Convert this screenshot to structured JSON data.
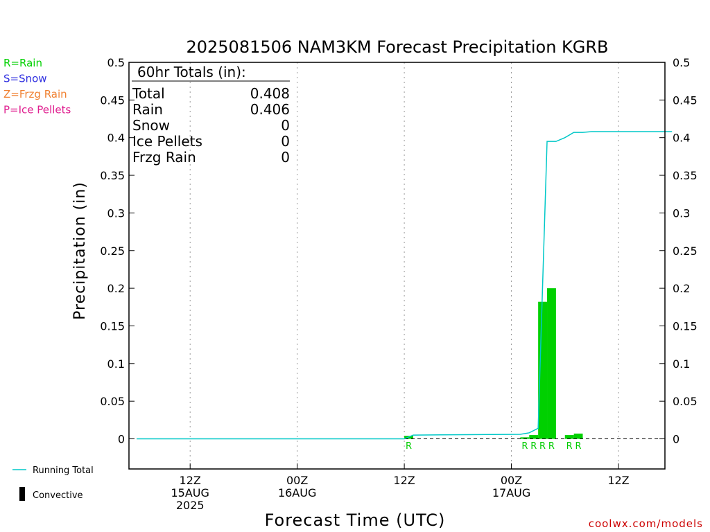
{
  "chart_data": {
    "type": "bar",
    "title": "2025081506 NAM3KM Forecast Precipitation KGRB",
    "xlabel": "Forecast Time (UTC)",
    "ylabel": "Precipitation (in)",
    "ylim": [
      -0.04,
      0.5
    ],
    "xlim_hours": [
      0,
      60
    ],
    "yticks": [
      "0",
      "0.05",
      "0.1",
      "0.15",
      "0.2",
      "0.25",
      "0.3",
      "0.35",
      "0.4",
      "0.45",
      "0.5"
    ],
    "xticks": [
      {
        "hour": 6,
        "lines": [
          "12Z",
          "15AUG",
          "2025"
        ]
      },
      {
        "hour": 18,
        "lines": [
          "00Z",
          "16AUG"
        ]
      },
      {
        "hour": 30,
        "lines": [
          "12Z"
        ]
      },
      {
        "hour": 42,
        "lines": [
          "00Z",
          "17AUG"
        ]
      },
      {
        "hour": 54,
        "lines": [
          "12Z"
        ]
      }
    ],
    "grid": "vertical dotted",
    "series": [
      {
        "name": "Rain",
        "color": "#00d000",
        "bars": [
          {
            "hour": 31,
            "value": 0.004,
            "ptype": "R"
          },
          {
            "hour": 44,
            "value": 0.002,
            "ptype": "R"
          },
          {
            "hour": 45,
            "value": 0.005,
            "ptype": "R"
          },
          {
            "hour": 46,
            "value": 0.182,
            "ptype": "R"
          },
          {
            "hour": 47,
            "value": 0.2,
            "ptype": "R"
          },
          {
            "hour": 49,
            "value": 0.005,
            "ptype": "R"
          },
          {
            "hour": 50,
            "value": 0.007,
            "ptype": "R"
          }
        ]
      },
      {
        "name": "Running Total",
        "color": "#00c8c8",
        "x": [
          0,
          30,
          31,
          43,
          44,
          45,
          46,
          47,
          48,
          49,
          50,
          51,
          60
        ],
        "values": [
          0.0,
          0.0,
          0.005,
          0.006,
          0.008,
          0.014,
          0.395,
          0.395,
          0.4,
          0.407,
          0.407,
          0.408,
          0.408
        ]
      }
    ],
    "totals": {
      "header": "60hr Totals (in):",
      "rows": [
        {
          "label": "Total",
          "value": "0.408"
        },
        {
          "label": "Rain",
          "value": "0.406"
        },
        {
          "label": "Snow",
          "value": "0"
        },
        {
          "label": "Ice Pellets",
          "value": "0"
        },
        {
          "label": "Frzg Rain",
          "value": "0"
        }
      ]
    },
    "ptype_legend": [
      {
        "text": "R=Rain",
        "color": "#00d000"
      },
      {
        "text": "S=Snow",
        "color": "#3030e0"
      },
      {
        "text": "Z=Frzg Rain",
        "color": "#f08030"
      },
      {
        "text": "P=Ice Pellets",
        "color": "#e02090"
      }
    ],
    "bottom_legend": {
      "running_total": "Running Total",
      "convective": "Convective"
    },
    "credit": "coolwx.com/models"
  }
}
